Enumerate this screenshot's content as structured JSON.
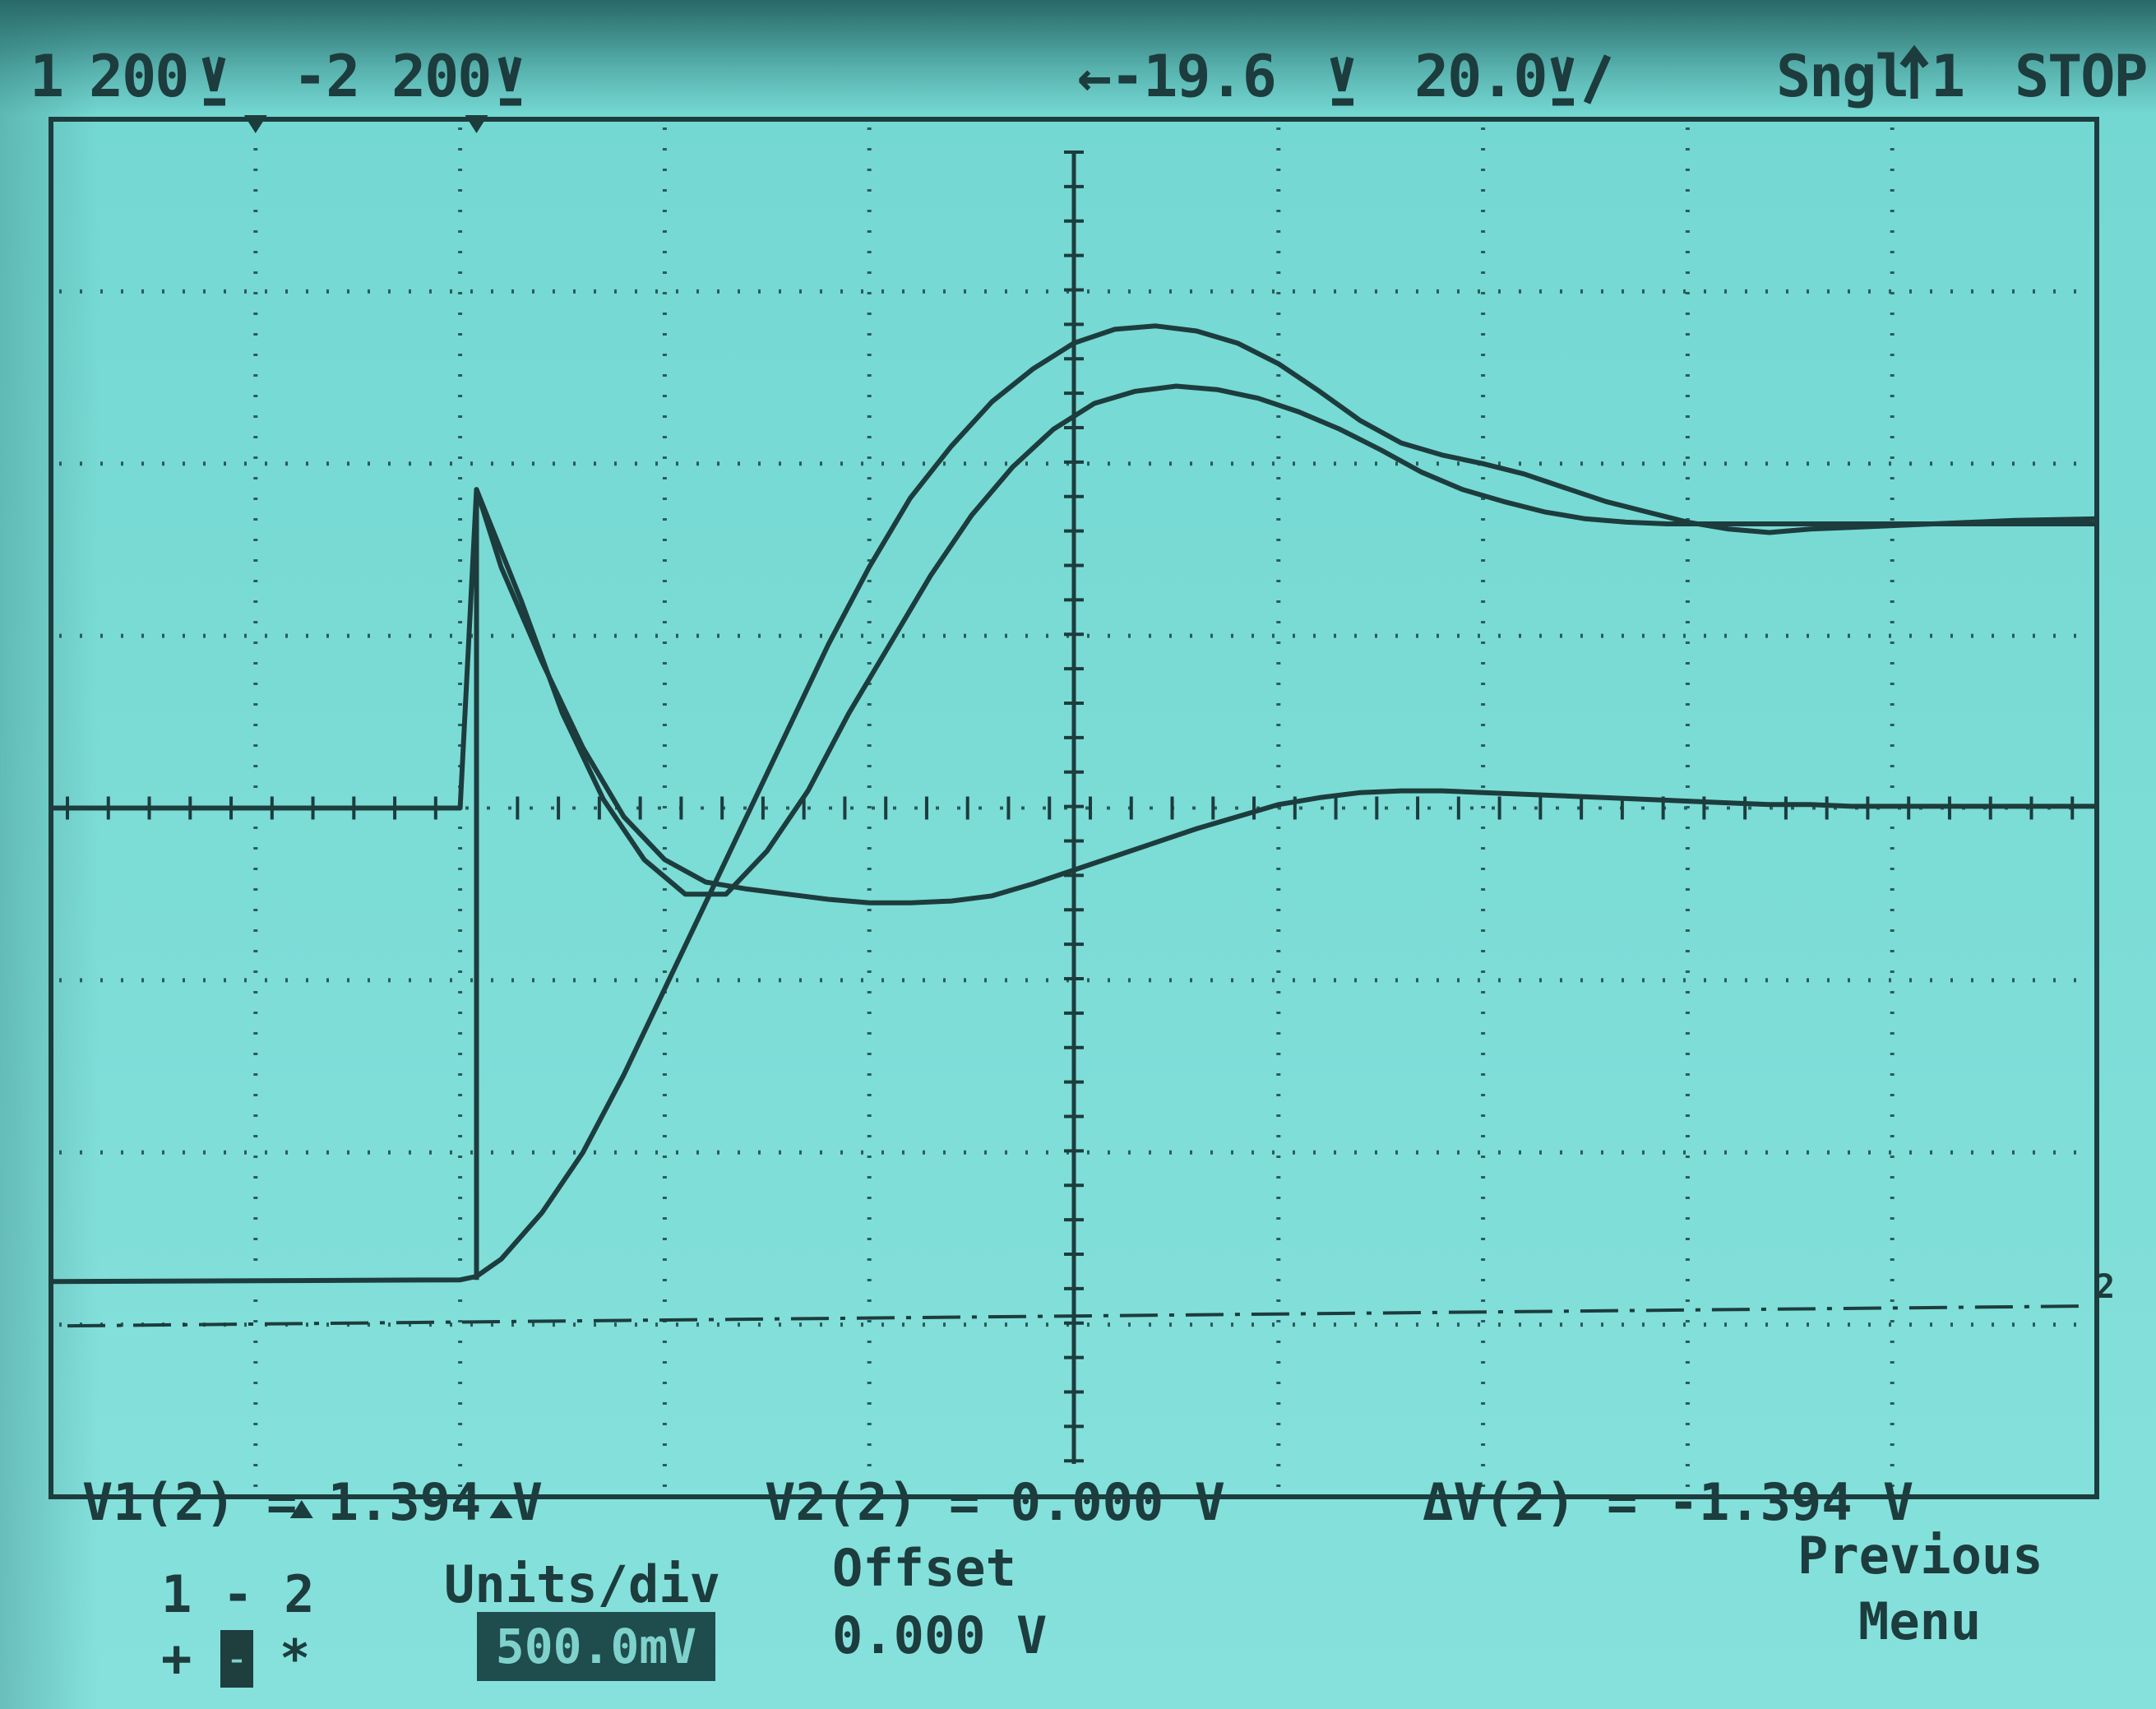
{
  "header": {
    "ch1": "1",
    "ch1_scale": "200",
    "ch2": "-2",
    "ch2_scale": "200",
    "delay": "←-19.6",
    "timebase": "20.0",
    "mode": "Sngl",
    "trigger_channel": "1",
    "run_state": "STOP"
  },
  "markers": {
    "ch2_ground": "2"
  },
  "measurements": {
    "v1": "V1(2) = 1.394 V",
    "v2": "V2(2) = 0.000 V",
    "dv": "ΔV(2) = -1.394 V"
  },
  "softkeys": {
    "source": "1 - 2",
    "units_label": "Units/div",
    "units_value": "500.0mV",
    "offset_label": "Offset",
    "offset_value": "0.000 V",
    "coupling_plus": "+",
    "coupling_minus": "-",
    "coupling_star": "*",
    "previous": "Previous",
    "menu": "Menu"
  },
  "colors": {
    "screen": "#7cdcd6",
    "trace": "#1d3c3d",
    "grid": "#2d5a5a"
  },
  "chart_data": {
    "type": "line",
    "grid": true,
    "x_divisions": 10,
    "y_divisions": 8,
    "x_unit_per_div": "20.0µs",
    "series": [
      {
        "x": [
          0,
          2.0,
          2.08,
          2.2,
          2.4,
          2.6,
          2.8,
          3.0,
          3.2,
          3.4,
          3.6,
          3.8,
          4.0,
          4.2,
          4.4,
          4.6,
          4.8,
          5.0,
          5.2,
          5.4,
          5.6,
          5.8,
          6.0,
          6.2,
          6.4,
          6.6,
          6.8,
          7.0,
          7.2,
          7.4,
          7.6,
          7.8,
          8.0,
          8.2,
          8.4,
          8.6,
          8.8,
          9.0,
          9.2,
          9.4,
          9.6,
          10
        ],
        "y": [
          -2.75,
          -2.74,
          -2.72,
          -2.62,
          -2.35,
          -2.0,
          -1.55,
          -1.05,
          -0.55,
          -0.05,
          0.45,
          0.95,
          1.4,
          1.8,
          2.1,
          2.36,
          2.55,
          2.7,
          2.78,
          2.8,
          2.77,
          2.7,
          2.58,
          2.42,
          2.25,
          2.12,
          2.05,
          2.0,
          1.94,
          1.86,
          1.78,
          1.72,
          1.66,
          1.62,
          1.6,
          1.62,
          1.63,
          1.64,
          1.65,
          1.66,
          1.67,
          1.68
        ]
      },
      {
        "x": [
          0,
          2.0,
          2.08,
          2.2,
          2.4,
          2.6,
          2.8,
          3.0,
          3.2,
          3.4,
          3.6,
          3.8,
          4.0,
          4.2,
          4.4,
          4.6,
          4.8,
          5.0,
          5.2,
          5.4,
          5.6,
          5.8,
          6.0,
          6.2,
          6.4,
          6.6,
          6.8,
          7.0,
          7.2,
          7.4,
          7.6,
          7.8,
          8.0,
          8.2,
          8.4,
          8.6,
          8.8,
          9.0,
          9.2,
          9.4,
          9.6,
          10
        ],
        "y": [
          0.0,
          0.0,
          1.85,
          1.4,
          0.85,
          0.35,
          -0.05,
          -0.3,
          -0.43,
          -0.47,
          -0.5,
          -0.53,
          -0.55,
          -0.55,
          -0.54,
          -0.51,
          -0.44,
          -0.36,
          -0.28,
          -0.2,
          -0.12,
          -0.05,
          0.02,
          0.06,
          0.09,
          0.1,
          0.1,
          0.09,
          0.08,
          0.07,
          0.06,
          0.05,
          0.04,
          0.03,
          0.02,
          0.02,
          0.01,
          0.01,
          0.01,
          0.01,
          0.01,
          0.01
        ]
      },
      {
        "x": [
          2.08,
          2.3,
          2.5,
          2.7,
          2.9,
          3.1,
          3.3,
          3.5,
          3.7,
          3.9,
          4.1,
          4.3,
          4.5,
          4.7,
          4.9,
          5.1,
          5.3,
          5.5,
          5.7,
          5.9,
          6.1,
          6.3,
          6.5,
          6.7,
          6.9,
          7.1,
          7.3,
          7.5,
          7.7,
          7.9,
          8.1,
          8.3,
          8.5,
          8.7,
          8.9,
          9.1,
          9.3,
          9.5,
          9.7,
          10
        ],
        "y": [
          1.85,
          1.2,
          0.55,
          0.05,
          -0.3,
          -0.5,
          -0.5,
          -0.25,
          0.1,
          0.55,
          0.95,
          1.35,
          1.7,
          1.98,
          2.2,
          2.35,
          2.42,
          2.45,
          2.43,
          2.38,
          2.3,
          2.2,
          2.08,
          1.95,
          1.85,
          1.78,
          1.72,
          1.68,
          1.66,
          1.65,
          1.65,
          1.65,
          1.65,
          1.65,
          1.65,
          1.65,
          1.65,
          1.65,
          1.65,
          1.65
        ]
      }
    ]
  }
}
